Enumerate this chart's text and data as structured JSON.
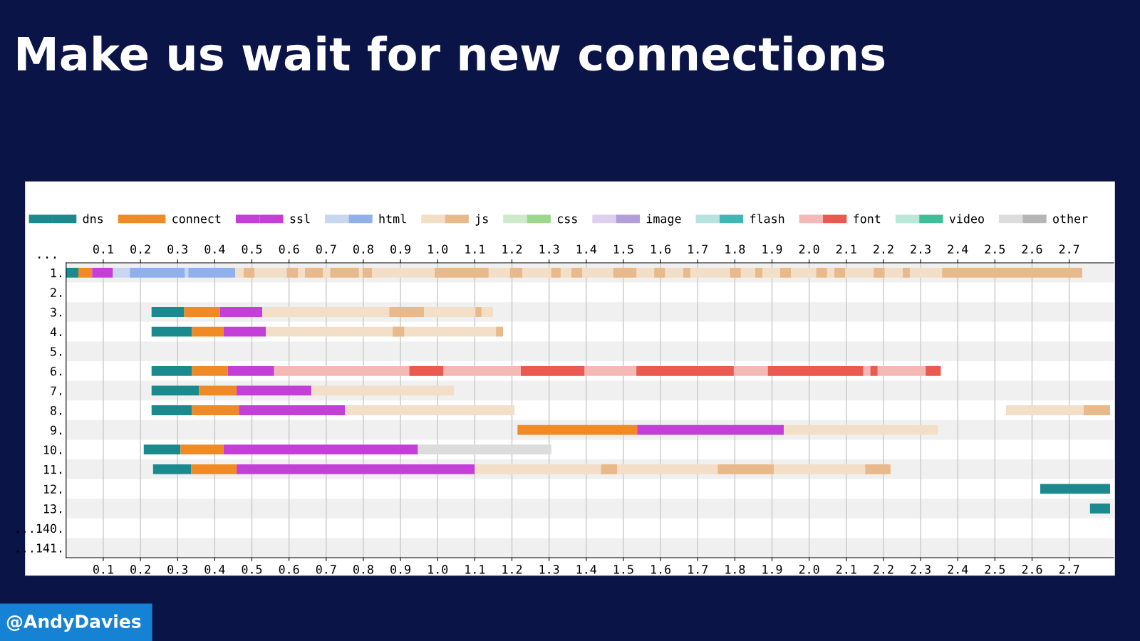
{
  "chart_data": {
    "type": "bar",
    "orientation": "horizontal",
    "title": "Make us wait for new connections",
    "categories": [
      "1.",
      "2.",
      "3.",
      "4.",
      "5.",
      "6.",
      "7.",
      "8.",
      "9.",
      "10.",
      "11.",
      "12.",
      "13.",
      "...140.",
      "...141."
    ],
    "xlim": [
      0,
      2.82
    ],
    "xticks": [
      0.1,
      0.2,
      0.3,
      0.4,
      0.5,
      0.6,
      0.7,
      0.8,
      0.9,
      {
        "value": 1.0,
        "label": "1.0"
      },
      1.1,
      1.2,
      1.3,
      1.4,
      1.5,
      1.6,
      1.7,
      1.8,
      1.9,
      {
        "value": 2.0,
        "label": "2.0"
      },
      2.1,
      2.2,
      2.3,
      2.4,
      2.5,
      2.6,
      2.7
    ],
    "x2lim": [
      0,
      2.82
    ],
    "x2ticks": [
      0.1,
      0.2,
      0.3,
      0.4,
      0.5,
      0.6,
      0.7,
      0.8,
      0.9,
      {
        "value": 1.0,
        "label": "1.0"
      },
      1.1,
      1.2,
      1.3,
      1.4,
      1.5,
      1.6,
      1.7,
      1.8,
      1.9,
      {
        "value": 2.0,
        "label": "2.0"
      },
      2.1,
      2.2,
      2.3,
      2.4,
      2.5,
      2.6,
      2.7
    ],
    "grid": "x",
    "legend": "top",
    "annotations": [
      "...",
      "@AndyDavies"
    ],
    "series": [
      {
        "name": "dns",
        "color": "#1b8a8f",
        "base": [
          0,
          null,
          0.23,
          0.23,
          null,
          0.23,
          0.23,
          0.23,
          null,
          0.209,
          0.234,
          2.622,
          2.756,
          null,
          null
        ],
        "values": [
          0.033,
          null,
          0.088,
          0.109,
          null,
          0.109,
          0.128,
          0.109,
          null,
          0.099,
          0.103,
          0.188,
          0.054,
          null,
          null
        ]
      },
      {
        "name": "connect",
        "color": "#f08a24",
        "base": [
          0.033,
          null,
          0.318,
          0.339,
          null,
          0.339,
          0.358,
          0.339,
          1.215,
          0.308,
          0.337,
          null,
          null,
          null,
          null
        ],
        "values": [
          0.037,
          null,
          0.096,
          0.085,
          null,
          0.096,
          0.101,
          0.126,
          0.322,
          0.116,
          0.122,
          null,
          null,
          null,
          null
        ]
      },
      {
        "name": "ssl",
        "color": "#c43fd8",
        "base": [
          0.07,
          null,
          0.414,
          0.424,
          null,
          0.435,
          0.459,
          0.465,
          1.537,
          0.424,
          0.459,
          null,
          null,
          null,
          null
        ],
        "values": [
          0.056,
          null,
          0.114,
          0.114,
          null,
          0.125,
          0.201,
          0.286,
          0.395,
          0.523,
          0.641,
          null,
          null,
          null,
          null
        ]
      },
      {
        "color": "#c8d6ef",
        "base": [
          0.126,
          null,
          null,
          null,
          null,
          null,
          null,
          null,
          null,
          null,
          null,
          null,
          null,
          null,
          null
        ],
        "values": [
          0.203,
          null,
          null,
          null,
          null,
          null,
          null,
          null,
          null,
          null,
          null,
          null,
          null,
          null,
          null
        ]
      },
      {
        "name": "html",
        "color": "#8fb0ea",
        "base": [
          0.172,
          null,
          null,
          null,
          null,
          null,
          null,
          null,
          null,
          null,
          null,
          null,
          null,
          null,
          null
        ],
        "values": [
          0.147,
          null,
          null,
          null,
          null,
          null,
          null,
          null,
          null,
          null,
          null,
          null,
          null,
          null,
          null
        ]
      },
      {
        "color": "#8fb0ea",
        "base": [
          0.329,
          null,
          null,
          null,
          null,
          null,
          null,
          null,
          null,
          null,
          null,
          null,
          null,
          null,
          null
        ],
        "values": [
          0.126,
          null,
          null,
          null,
          null,
          null,
          null,
          null,
          null,
          null,
          null,
          null,
          null,
          null,
          null
        ]
      },
      {
        "color": "#f3dfc8",
        "base": [
          0.455,
          null,
          0.528,
          0.538,
          null,
          null,
          0.66,
          0.751,
          1.932,
          null,
          1.1,
          null,
          null,
          null,
          null
        ],
        "values": [
          2.28,
          null,
          0.621,
          0.619,
          null,
          null,
          0.384,
          0.456,
          0.415,
          null,
          1.119,
          null,
          null,
          null,
          null
        ]
      },
      {
        "color": "#f3dfc8",
        "base": [
          null,
          null,
          null,
          null,
          null,
          null,
          null,
          2.53,
          null,
          null,
          null,
          null,
          null,
          null,
          null
        ],
        "values": [
          null,
          null,
          null,
          null,
          null,
          null,
          null,
          0.209,
          null,
          null,
          null,
          null,
          null,
          null,
          null
        ]
      },
      {
        "name": "js",
        "color": "#e8b98a",
        "base": [
          0.478,
          null,
          0.87,
          0.879,
          null,
          null,
          null,
          2.739,
          null,
          null,
          1.44,
          null,
          null,
          null,
          null
        ],
        "values": [
          0.029,
          null,
          0.093,
          0.031,
          null,
          null,
          null,
          0.071,
          null,
          null,
          0.043,
          null,
          null,
          null,
          null
        ]
      },
      {
        "color": "#e8b98a",
        "base": [
          0.594,
          null,
          1.102,
          1.157,
          null,
          null,
          null,
          null,
          null,
          null,
          1.754,
          null,
          null,
          null,
          null
        ],
        "values": [
          0.03,
          null,
          0.016,
          0.019,
          null,
          null,
          null,
          null,
          null,
          null,
          0.151,
          null,
          null,
          null,
          null
        ]
      },
      {
        "color": "#e8b98a",
        "base": [
          0.643,
          null,
          null,
          null,
          null,
          null,
          null,
          null,
          null,
          null,
          2.151,
          null,
          null,
          null,
          null
        ],
        "values": [
          0.048,
          null,
          null,
          null,
          null,
          null,
          null,
          null,
          null,
          null,
          0.068,
          null,
          null,
          null,
          null
        ]
      },
      {
        "color": "#e8b98a",
        "base": [
          0.711,
          null,
          null,
          null,
          null,
          null,
          null,
          null,
          null,
          null,
          null,
          null,
          null,
          null,
          null
        ],
        "values": [
          0.077,
          null,
          null,
          null,
          null,
          null,
          null,
          null,
          null,
          null,
          null,
          null,
          null,
          null,
          null
        ]
      },
      {
        "color": "#e8b98a",
        "base": [
          0.798,
          null,
          null,
          null,
          null,
          null,
          null,
          null,
          null,
          null,
          null,
          null,
          null,
          null,
          null
        ],
        "values": [
          0.025,
          null,
          null,
          null,
          null,
          null,
          null,
          null,
          null,
          null,
          null,
          null,
          null,
          null,
          null
        ]
      },
      {
        "color": "#e8b98a",
        "base": [
          0.992,
          null,
          null,
          null,
          null,
          null,
          null,
          null,
          null,
          null,
          null,
          null,
          null,
          null,
          null
        ],
        "values": [
          0.145,
          null,
          null,
          null,
          null,
          null,
          null,
          null,
          null,
          null,
          null,
          null,
          null,
          null,
          null
        ]
      },
      {
        "color": "#e8b98a",
        "base": [
          1.195,
          null,
          null,
          null,
          null,
          null,
          null,
          null,
          null,
          null,
          null,
          null,
          null,
          null,
          null
        ],
        "values": [
          0.033,
          null,
          null,
          null,
          null,
          null,
          null,
          null,
          null,
          null,
          null,
          null,
          null,
          null,
          null
        ]
      },
      {
        "color": "#e8b98a",
        "base": [
          1.306,
          null,
          null,
          null,
          null,
          null,
          null,
          null,
          null,
          null,
          null,
          null,
          null,
          null,
          null
        ],
        "values": [
          0.025,
          null,
          null,
          null,
          null,
          null,
          null,
          null,
          null,
          null,
          null,
          null,
          null,
          null,
          null
        ]
      },
      {
        "color": "#e8b98a",
        "base": [
          1.36,
          null,
          null,
          null,
          null,
          null,
          null,
          null,
          null,
          null,
          null,
          null,
          null,
          null,
          null
        ],
        "values": [
          0.029,
          null,
          null,
          null,
          null,
          null,
          null,
          null,
          null,
          null,
          null,
          null,
          null,
          null,
          null
        ]
      },
      {
        "color": "#e8b98a",
        "base": [
          1.473,
          null,
          null,
          null,
          null,
          null,
          null,
          null,
          null,
          null,
          null,
          null,
          null,
          null,
          null
        ],
        "values": [
          0.062,
          null,
          null,
          null,
          null,
          null,
          null,
          null,
          null,
          null,
          null,
          null,
          null,
          null,
          null
        ]
      },
      {
        "color": "#e8b98a",
        "base": [
          1.583,
          null,
          null,
          null,
          null,
          null,
          null,
          null,
          null,
          null,
          null,
          null,
          null,
          null,
          null
        ],
        "values": [
          0.029,
          null,
          null,
          null,
          null,
          null,
          null,
          null,
          null,
          null,
          null,
          null,
          null,
          null,
          null
        ]
      },
      {
        "color": "#e8b98a",
        "base": [
          1.661,
          null,
          null,
          null,
          null,
          null,
          null,
          null,
          null,
          null,
          null,
          null,
          null,
          null,
          null
        ],
        "values": [
          0.019,
          null,
          null,
          null,
          null,
          null,
          null,
          null,
          null,
          null,
          null,
          null,
          null,
          null,
          null
        ]
      },
      {
        "color": "#e8b98a",
        "base": [
          1.787,
          null,
          null,
          null,
          null,
          null,
          null,
          null,
          null,
          null,
          null,
          null,
          null,
          null,
          null
        ],
        "values": [
          0.029,
          null,
          null,
          null,
          null,
          null,
          null,
          null,
          null,
          null,
          null,
          null,
          null,
          null,
          null
        ]
      },
      {
        "color": "#e8b98a",
        "base": [
          1.855,
          null,
          null,
          null,
          null,
          null,
          null,
          null,
          null,
          null,
          null,
          null,
          null,
          null,
          null
        ],
        "values": [
          0.019,
          null,
          null,
          null,
          null,
          null,
          null,
          null,
          null,
          null,
          null,
          null,
          null,
          null,
          null
        ]
      },
      {
        "color": "#e8b98a",
        "base": [
          1.922,
          null,
          null,
          null,
          null,
          null,
          null,
          null,
          null,
          null,
          null,
          null,
          null,
          null,
          null
        ],
        "values": [
          0.029,
          null,
          null,
          null,
          null,
          null,
          null,
          null,
          null,
          null,
          null,
          null,
          null,
          null,
          null
        ]
      },
      {
        "color": "#e8b98a",
        "base": [
          2.019,
          null,
          null,
          null,
          null,
          null,
          null,
          null,
          null,
          null,
          null,
          null,
          null,
          null,
          null
        ],
        "values": [
          0.029,
          null,
          null,
          null,
          null,
          null,
          null,
          null,
          null,
          null,
          null,
          null,
          null,
          null,
          null
        ]
      },
      {
        "color": "#e8b98a",
        "base": [
          2.068,
          null,
          null,
          null,
          null,
          null,
          null,
          null,
          null,
          null,
          null,
          null,
          null,
          null,
          null
        ],
        "values": [
          0.029,
          null,
          null,
          null,
          null,
          null,
          null,
          null,
          null,
          null,
          null,
          null,
          null,
          null,
          null
        ]
      },
      {
        "color": "#e8b98a",
        "base": [
          2.174,
          null,
          null,
          null,
          null,
          null,
          null,
          null,
          null,
          null,
          null,
          null,
          null,
          null,
          null
        ],
        "values": [
          0.029,
          null,
          null,
          null,
          null,
          null,
          null,
          null,
          null,
          null,
          null,
          null,
          null,
          null,
          null
        ]
      },
      {
        "color": "#e8b98a",
        "base": [
          2.252,
          null,
          null,
          null,
          null,
          null,
          null,
          null,
          null,
          null,
          null,
          null,
          null,
          null,
          null
        ],
        "values": [
          0.019,
          null,
          null,
          null,
          null,
          null,
          null,
          null,
          null,
          null,
          null,
          null,
          null,
          null,
          null
        ]
      },
      {
        "color": "#e8b98a",
        "base": [
          2.358,
          null,
          null,
          null,
          null,
          null,
          null,
          null,
          null,
          null,
          null,
          null,
          null,
          null,
          null
        ],
        "values": [
          0.377,
          null,
          null,
          null,
          null,
          null,
          null,
          null,
          null,
          null,
          null,
          null,
          null,
          null,
          null
        ]
      },
      {
        "color": "#cfeacb",
        "values": [
          null,
          null,
          null,
          null,
          null,
          null,
          null,
          null,
          null,
          null,
          null,
          null,
          null,
          null,
          null
        ]
      },
      {
        "name": "css",
        "color": "#9bd88e",
        "values": [
          null,
          null,
          null,
          null,
          null,
          null,
          null,
          null,
          null,
          null,
          null,
          null,
          null,
          null,
          null
        ]
      },
      {
        "color": "#ddd0ee",
        "values": [
          null,
          null,
          null,
          null,
          null,
          null,
          null,
          null,
          null,
          null,
          null,
          null,
          null,
          null,
          null
        ]
      },
      {
        "name": "image",
        "color": "#b39ddb",
        "values": [
          null,
          null,
          null,
          null,
          null,
          null,
          null,
          null,
          null,
          null,
          null,
          null,
          null,
          null,
          null
        ]
      },
      {
        "color": "#b6e3e0",
        "values": [
          null,
          null,
          null,
          null,
          null,
          null,
          null,
          null,
          null,
          null,
          null,
          null,
          null,
          null,
          null
        ]
      },
      {
        "name": "flash",
        "color": "#40b7b5",
        "values": [
          null,
          null,
          null,
          null,
          null,
          null,
          null,
          null,
          null,
          null,
          null,
          null,
          null,
          null,
          null
        ]
      },
      {
        "color": "#f4b9b4",
        "base": [
          null,
          null,
          null,
          null,
          null,
          0.56,
          null,
          null,
          null,
          null,
          null,
          null,
          null,
          null,
          null
        ],
        "values": [
          null,
          null,
          null,
          null,
          null,
          1.795,
          null,
          null,
          null,
          null,
          null,
          null,
          null,
          null,
          null
        ]
      },
      {
        "name": "font",
        "color": "#ea5a4e",
        "base": [
          null,
          null,
          null,
          null,
          null,
          0.924,
          null,
          null,
          null,
          null,
          null,
          null,
          null,
          null,
          null
        ],
        "values": [
          null,
          null,
          null,
          null,
          null,
          0.091,
          null,
          null,
          null,
          null,
          null,
          null,
          null,
          null,
          null
        ]
      },
      {
        "color": "#ea5a4e",
        "base": [
          null,
          null,
          null,
          null,
          null,
          1.224,
          null,
          null,
          null,
          null,
          null,
          null,
          null,
          null,
          null
        ],
        "values": [
          null,
          null,
          null,
          null,
          null,
          0.171,
          null,
          null,
          null,
          null,
          null,
          null,
          null,
          null,
          null
        ]
      },
      {
        "color": "#ea5a4e",
        "base": [
          null,
          null,
          null,
          null,
          null,
          1.535,
          null,
          null,
          null,
          null,
          null,
          null,
          null,
          null,
          null
        ],
        "values": [
          null,
          null,
          null,
          null,
          null,
          0.262,
          null,
          null,
          null,
          null,
          null,
          null,
          null,
          null,
          null
        ]
      },
      {
        "color": "#ea5a4e",
        "base": [
          null,
          null,
          null,
          null,
          null,
          1.889,
          null,
          null,
          null,
          null,
          null,
          null,
          null,
          null,
          null
        ],
        "values": [
          null,
          null,
          null,
          null,
          null,
          0.256,
          null,
          null,
          null,
          null,
          null,
          null,
          null,
          null,
          null
        ]
      },
      {
        "color": "#ea5a4e",
        "base": [
          null,
          null,
          null,
          null,
          null,
          2.165,
          null,
          null,
          null,
          null,
          null,
          null,
          null,
          null,
          null
        ],
        "values": [
          null,
          null,
          null,
          null,
          null,
          0.019,
          null,
          null,
          null,
          null,
          null,
          null,
          null,
          null,
          null
        ]
      },
      {
        "color": "#ea5a4e",
        "base": [
          null,
          null,
          null,
          null,
          null,
          2.314,
          null,
          null,
          null,
          null,
          null,
          null,
          null,
          null,
          null
        ],
        "values": [
          null,
          null,
          null,
          null,
          null,
          0.04,
          null,
          null,
          null,
          null,
          null,
          null,
          null,
          null,
          null
        ]
      },
      {
        "color": "#b9e8d8",
        "values": [
          null,
          null,
          null,
          null,
          null,
          null,
          null,
          null,
          null,
          null,
          null,
          null,
          null,
          null,
          null
        ]
      },
      {
        "name": "video",
        "color": "#3fbf98",
        "values": [
          null,
          null,
          null,
          null,
          null,
          null,
          null,
          null,
          null,
          null,
          null,
          null,
          null,
          null,
          null
        ]
      },
      {
        "color": "#dcdcdc",
        "base": [
          null,
          null,
          null,
          null,
          null,
          null,
          null,
          null,
          null,
          0.947,
          null,
          null,
          null,
          null,
          null
        ],
        "values": [
          null,
          null,
          null,
          null,
          null,
          null,
          null,
          null,
          null,
          0.359,
          null,
          null,
          null,
          null,
          null
        ]
      },
      {
        "name": "other",
        "color": "#b5b5b5",
        "values": [
          null,
          null,
          null,
          null,
          null,
          null,
          null,
          null,
          null,
          null,
          null,
          null,
          null,
          null,
          null
        ]
      }
    ]
  }
}
